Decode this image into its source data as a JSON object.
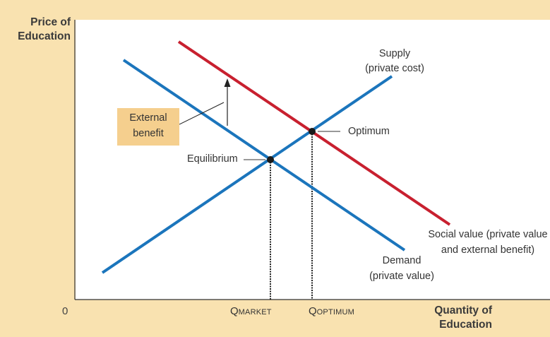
{
  "axes": {
    "y_title": [
      "Price of",
      "Education"
    ],
    "x_title": [
      "Quantity of",
      "Education"
    ],
    "origin": "0"
  },
  "quantities": {
    "market": {
      "main": "Q",
      "sub": "MARKET"
    },
    "optimum": {
      "main": "Q",
      "sub": "OPTIMUM"
    }
  },
  "curves": {
    "supply": {
      "lines": [
        "Supply",
        "(private cost)"
      ],
      "color": "#1b75bc"
    },
    "demand": {
      "lines": [
        "Demand",
        "(private value)"
      ],
      "color": "#1b75bc"
    },
    "social_value": {
      "lines": [
        "Social value (private value",
        "and external benefit)"
      ],
      "color": "#c8202f"
    }
  },
  "points": {
    "equilibrium": "Equilibrium",
    "optimum": "Optimum"
  },
  "external_benefit": {
    "lines": [
      "External",
      "benefit"
    ],
    "box_color": "#f5cf8e"
  },
  "colors": {
    "frame_background": "#f9e2b0",
    "plot_background": "#ffffff"
  }
}
